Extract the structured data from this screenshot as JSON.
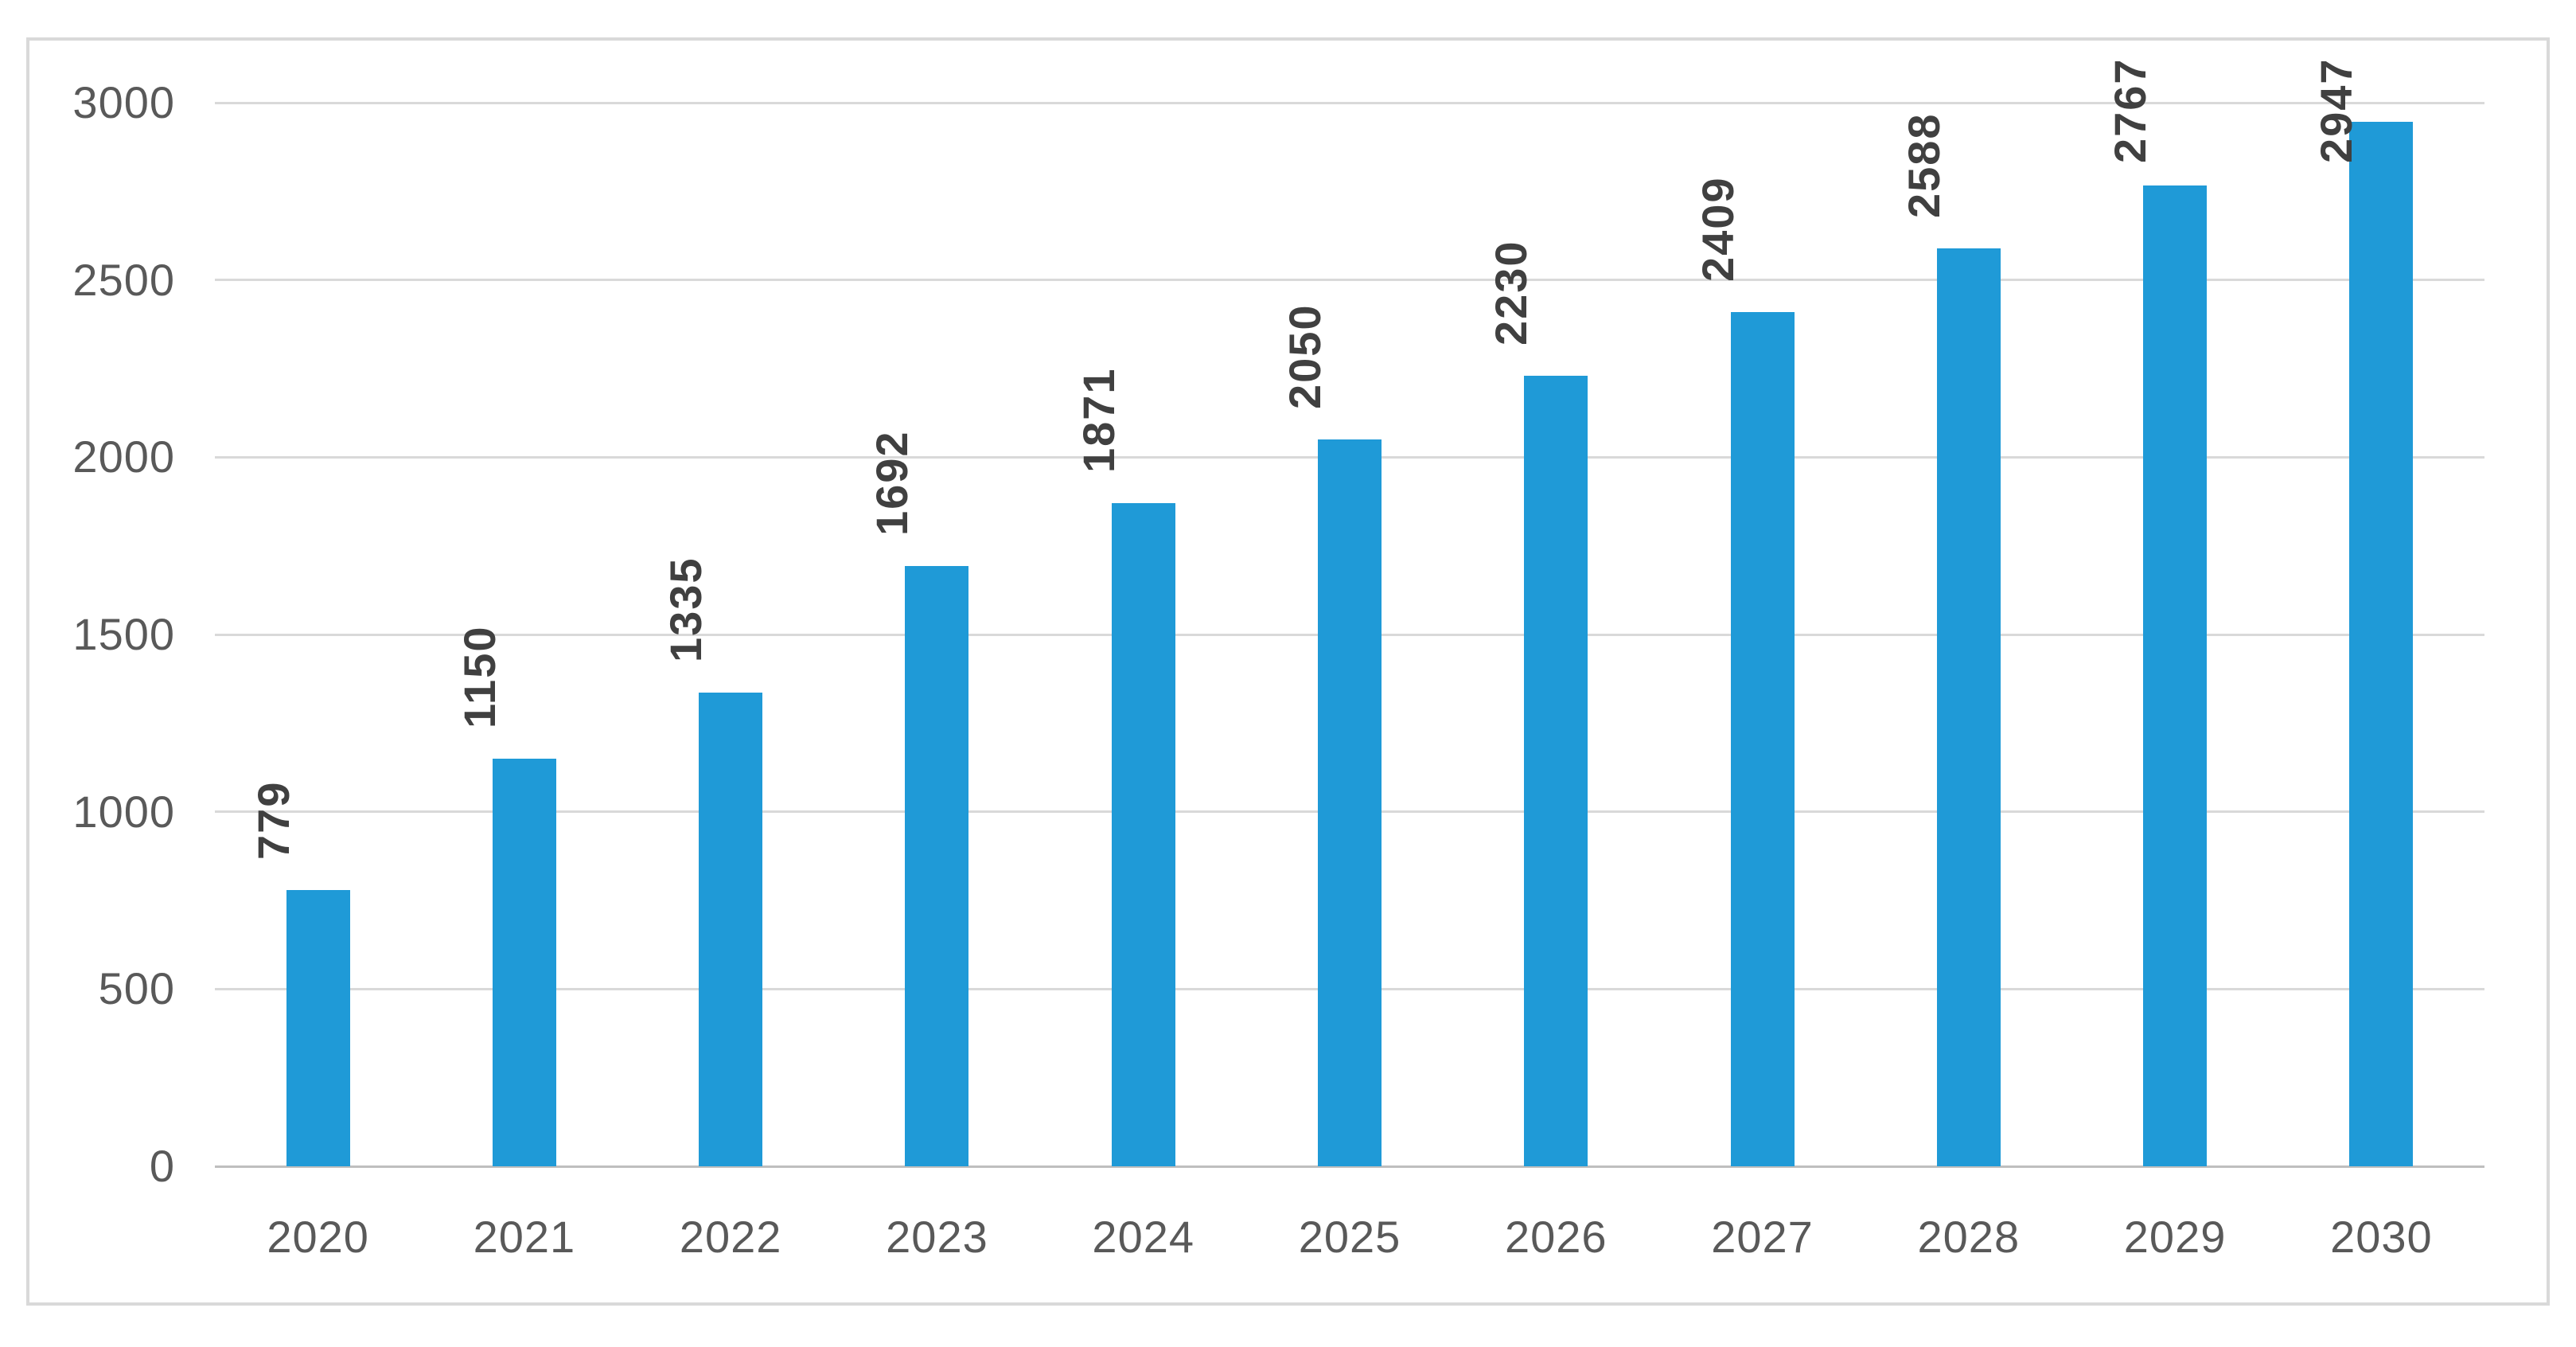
{
  "chart_data": {
    "type": "bar",
    "title": "",
    "xlabel": "",
    "ylabel": "",
    "categories": [
      "2020",
      "2021",
      "2022",
      "2023",
      "2024",
      "2025",
      "2026",
      "2027",
      "2028",
      "2029",
      "2030"
    ],
    "values": [
      779,
      1150,
      1335,
      1692,
      1871,
      2050,
      2230,
      2409,
      2588,
      2767,
      2947
    ],
    "data_labels_shown": true,
    "data_label_rotation_deg": -90,
    "ylim": [
      0,
      3000
    ],
    "yticks": [
      0,
      500,
      1000,
      1500,
      2000,
      2500,
      3000
    ],
    "grid": "horizontal",
    "legend": "none",
    "colors": {
      "bar": "#1F9AD7",
      "gridline": "#D9D9D9",
      "axis_line": "#BFBFBF",
      "tick_text": "#595959",
      "data_label_text": "#404040",
      "frame_border": "#D9D9D9",
      "background": "#FFFFFF"
    }
  }
}
